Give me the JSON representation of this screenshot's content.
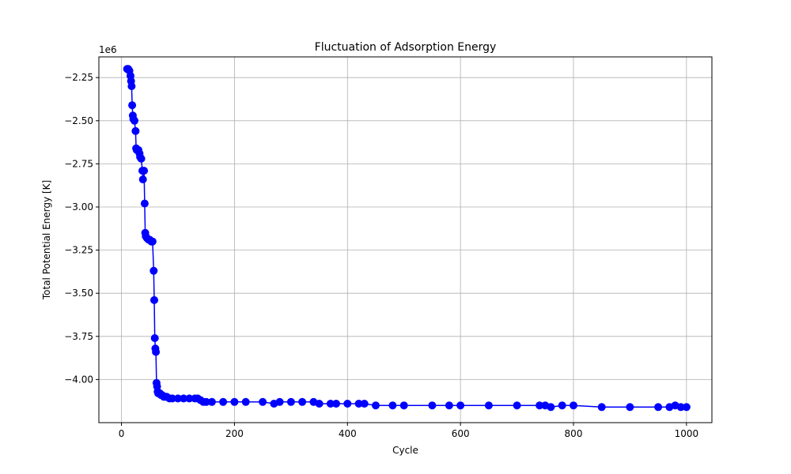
{
  "chart_data": {
    "type": "line",
    "title": "Fluctuation of Adsorption Energy",
    "xlabel": "Cycle",
    "ylabel": "Total Potential Energy [K]",
    "y_offset_label": "1e6",
    "xlim": [
      -40,
      1045
    ],
    "ylim": [
      -4.25,
      -2.13
    ],
    "x_ticks": [
      0,
      200,
      400,
      600,
      800,
      1000
    ],
    "x_tick_labels": [
      "0",
      "200",
      "400",
      "600",
      "800",
      "1000"
    ],
    "y_ticks": [
      -2.25,
      -2.5,
      -2.75,
      -3.0,
      -3.25,
      -3.5,
      -3.75,
      -4.0
    ],
    "y_tick_labels": [
      "−2.25",
      "−2.50",
      "−2.75",
      "−3.00",
      "−3.25",
      "−3.50",
      "−3.75",
      "−4.00"
    ],
    "grid": true,
    "series": [
      {
        "color": "#0000ff",
        "marker": "circle",
        "x": [
          10,
          12,
          14,
          16,
          17,
          18,
          19,
          20,
          21,
          23,
          25,
          26,
          27,
          30,
          32,
          33,
          35,
          37,
          38,
          40,
          41,
          42,
          43,
          45,
          48,
          50,
          53,
          55,
          57,
          58,
          59,
          60,
          61,
          62,
          63,
          64,
          65,
          66,
          68,
          70,
          72,
          75,
          78,
          80,
          85,
          90,
          100,
          110,
          120,
          130,
          135,
          140,
          145,
          150,
          160,
          180,
          200,
          220,
          250,
          270,
          280,
          300,
          320,
          340,
          350,
          370,
          380,
          400,
          420,
          430,
          450,
          480,
          500,
          550,
          580,
          600,
          650,
          700,
          740,
          750,
          760,
          780,
          800,
          850,
          900,
          950,
          970,
          980,
          990,
          1000
        ],
        "y": [
          -2.2,
          -2.2,
          -2.21,
          -2.24,
          -2.27,
          -2.3,
          -2.41,
          -2.47,
          -2.49,
          -2.5,
          -2.56,
          -2.66,
          -2.67,
          -2.67,
          -2.69,
          -2.71,
          -2.72,
          -2.79,
          -2.84,
          -2.79,
          -2.98,
          -3.15,
          -3.17,
          -3.18,
          -3.19,
          -3.19,
          -3.2,
          -3.2,
          -3.37,
          -3.54,
          -3.76,
          -3.82,
          -3.84,
          -4.02,
          -4.04,
          -4.07,
          -4.08,
          -4.08,
          -4.08,
          -4.09,
          -4.09,
          -4.1,
          -4.1,
          -4.1,
          -4.11,
          -4.11,
          -4.11,
          -4.11,
          -4.11,
          -4.11,
          -4.11,
          -4.12,
          -4.13,
          -4.13,
          -4.13,
          -4.13,
          -4.13,
          -4.13,
          -4.13,
          -4.14,
          -4.13,
          -4.13,
          -4.13,
          -4.13,
          -4.14,
          -4.14,
          -4.14,
          -4.14,
          -4.14,
          -4.14,
          -4.15,
          -4.15,
          -4.15,
          -4.15,
          -4.15,
          -4.15,
          -4.15,
          -4.15,
          -4.15,
          -4.15,
          -4.16,
          -4.15,
          -4.15,
          -4.16,
          -4.16,
          -4.16,
          -4.16,
          -4.15,
          -4.16,
          -4.16
        ]
      }
    ]
  }
}
